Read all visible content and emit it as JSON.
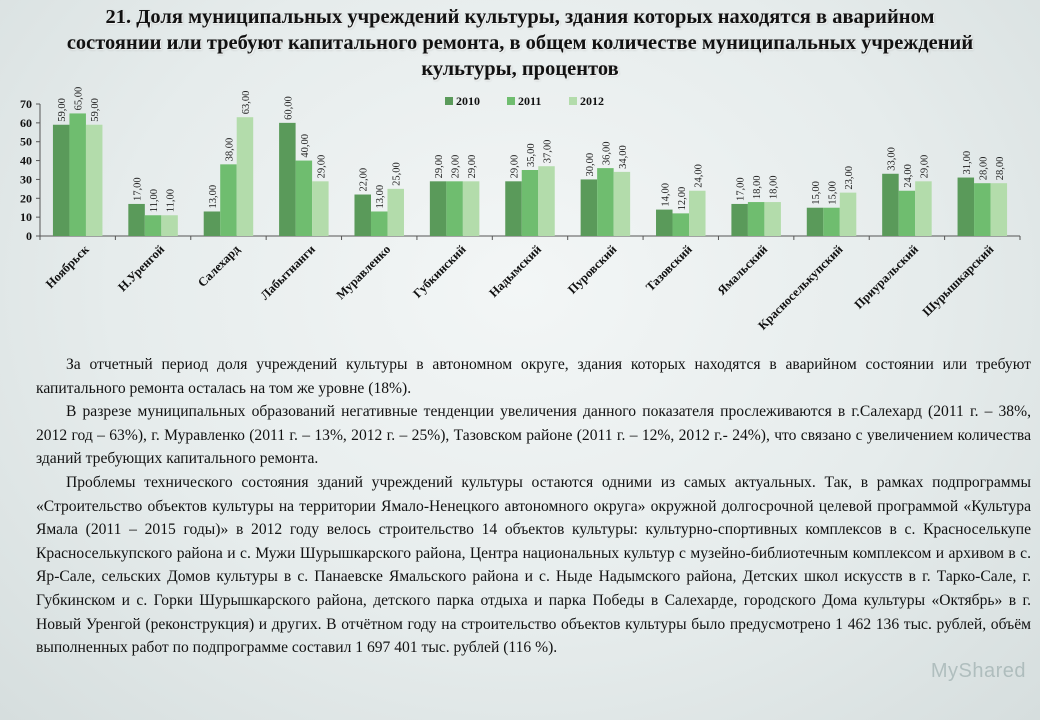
{
  "title_lines": [
    "21. Доля муниципальных учреждений культуры, здания которых находятся в аварийном",
    "состоянии или требуют капитального ремонта, в общем количестве муниципальных учреждений",
    "культуры, процентов"
  ],
  "colors": {
    "series": [
      "#5a9a5a",
      "#6fbd6f",
      "#b3dcab"
    ],
    "axis": "#555555",
    "text": "#111111"
  },
  "chart_data": {
    "type": "bar",
    "title": "21. Доля муниципальных учреждений культуры, здания которых находятся в аварийном состоянии или требуют капитального ремонта, в общем количестве муниципальных учреждений культуры, процентов",
    "xlabel": "",
    "ylabel": "",
    "ylim": [
      0,
      70
    ],
    "yticks": [
      0,
      10,
      20,
      30,
      40,
      50,
      60,
      70
    ],
    "grid": false,
    "legend_position": "top-center",
    "categories": [
      "Ноябрьск",
      "Н.Уренгой",
      "Салехард",
      "Лабытнанги",
      "Муравленко",
      "Губкинский",
      "Надымский",
      "Пуровский",
      "Тазовский",
      "Ямальский",
      "Красноселькупский",
      "Приуральский",
      "Шурышкарский"
    ],
    "series": [
      {
        "name": "2010",
        "values": [
          59,
          17,
          13,
          60,
          22,
          29,
          29,
          30,
          14,
          17,
          15,
          33,
          31
        ],
        "labels": [
          "59,00",
          "17,00",
          "13,00",
          "60,00",
          "22,00",
          "29,00",
          "29,00",
          "30,00",
          "14,00",
          "17,00",
          "15,00",
          "33,00",
          "31,00"
        ]
      },
      {
        "name": "2011",
        "values": [
          65,
          11,
          38,
          40,
          13,
          29,
          35,
          36,
          12,
          18,
          15,
          24,
          28
        ],
        "labels": [
          "65,00",
          "11,00",
          "38,00",
          "40,00",
          "13,00",
          "29,00",
          "35,00",
          "36,00",
          "12,00",
          "18,00",
          "15,00",
          "24,00",
          "28,00"
        ]
      },
      {
        "name": "2012",
        "values": [
          59,
          11,
          63,
          29,
          25,
          29,
          37,
          34,
          24,
          18,
          23,
          29,
          28
        ],
        "labels": [
          "59,00",
          "11,00",
          "63,00",
          "29,00",
          "25,00",
          "29,00",
          "37,00",
          "34,00",
          "24,00",
          "18,00",
          "23,00",
          "29,00",
          "28,00"
        ]
      }
    ]
  },
  "paragraphs": [
    "За отчетный период доля учреждений культуры в автономном округе, здания которых находятся в аварийном состоянии или требуют капитального ремонта осталась на том же уровне (18%).",
    "В разрезе муниципальных образований негативные тенденции увеличения данного показателя прослеживаются в г.Салехард  (2011 г. – 38%, 2012 год – 63%), г. Муравленко (2011 г. – 13%, 2012 г. – 25%), Тазовском районе (2011 г. – 12%, 2012 г.- 24%), что связано с увеличением количества зданий требующих капитального ремонта.",
    "Проблемы технического состояния зданий учреждений культуры остаются одними из самых актуальных. Так, в рамках подпрограммы «Строительство объектов культуры на территории Ямало-Ненецкого автономного округа» окружной долгосрочной целевой программой «Культура Ямала (2011 – 2015 годы)» в 2012 году велось строительство 14 объектов культуры: культурно-спортивных комплексов в с. Красноселькупе Красноселькупского района и с. Мужи Шурышкарского района, Центра национальных культур с музейно-библиотечным комплексом и архивом в с. Яр-Сале, сельских Домов культуры в с. Панаевске Ямальского района и с. Ныде Надымского района, Детских школ искусств в г. Тарко-Сале, г. Губкинском и с. Горки Шурышкарского района, детского парка отдыха и парка Победы в Салехарде, городского Дома культуры «Октябрь» в г. Новый Уренгой (реконструкция) и других. В отчётном году на строительство объектов культуры было предусмотрено 1 462 136 тыс. рублей, объём выполненных работ по подпрограмме составил 1 697 401 тыс. рублей (116 %)."
  ],
  "watermark": "MyShared"
}
